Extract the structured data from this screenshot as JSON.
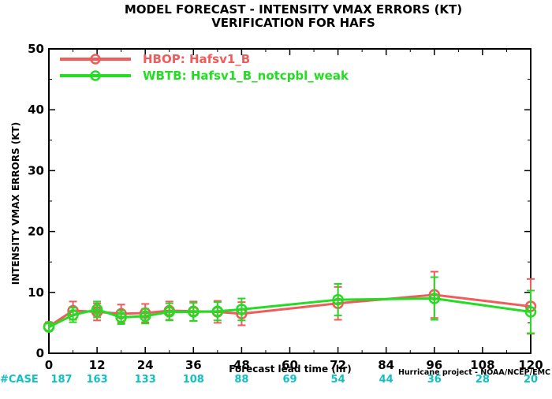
{
  "chart_data": {
    "type": "line",
    "title": [
      "MODEL FORECAST - INTENSITY VMAX ERRORS (KT)",
      "VERIFICATION FOR HAFS"
    ],
    "xlabel": "Forecast lead time (hr)",
    "ylabel": "INTENSITY VMAX ERRORS (KT)",
    "xlim": [
      0,
      120
    ],
    "ylim": [
      0,
      50
    ],
    "xticks": [
      0,
      12,
      24,
      36,
      48,
      60,
      72,
      84,
      96,
      108,
      120
    ],
    "yticks": [
      0,
      10,
      20,
      30,
      40,
      50
    ],
    "grid": false,
    "legend_position": "top-left",
    "case_label": "#CASE",
    "case_counts": [
      {
        "x": 0,
        "n": "187"
      },
      {
        "x": 12,
        "n": "163"
      },
      {
        "x": 24,
        "n": "133"
      },
      {
        "x": 36,
        "n": "108"
      },
      {
        "x": 48,
        "n": "88"
      },
      {
        "x": 60,
        "n": "69"
      },
      {
        "x": 72,
        "n": "54"
      },
      {
        "x": 84,
        "n": "44"
      },
      {
        "x": 96,
        "n": "36"
      },
      {
        "x": 108,
        "n": "28"
      },
      {
        "x": 120,
        "n": "20"
      }
    ],
    "series": [
      {
        "name": "HBOP: Hafsv1_B",
        "color": "#f25b5b",
        "x": [
          0,
          6,
          12,
          18,
          24,
          30,
          36,
          42,
          48,
          72,
          96,
          120
        ],
        "y": [
          4.4,
          7.0,
          6.8,
          6.5,
          6.6,
          7.0,
          6.9,
          6.8,
          6.5,
          8.2,
          9.6,
          7.7
        ],
        "err": [
          0.7,
          1.5,
          1.4,
          1.5,
          1.5,
          1.5,
          1.6,
          1.8,
          1.9,
          2.7,
          3.8,
          4.5
        ]
      },
      {
        "name": "WBTB: Hafsv1_B_notcpbl_weak",
        "color": "#22dd22",
        "x": [
          0,
          6,
          12,
          18,
          24,
          30,
          36,
          42,
          48,
          72,
          96,
          120
        ],
        "y": [
          4.3,
          6.3,
          7.2,
          5.9,
          6.1,
          6.8,
          6.8,
          6.9,
          7.2,
          8.8,
          9.0,
          6.8
        ],
        "err": [
          0.6,
          1.2,
          1.3,
          1.1,
          1.2,
          1.4,
          1.5,
          1.5,
          1.8,
          2.6,
          3.5,
          3.5
        ]
      }
    ]
  },
  "footer": {
    "credit": "Hurricane project - NOAA/NCEP/EMC"
  }
}
